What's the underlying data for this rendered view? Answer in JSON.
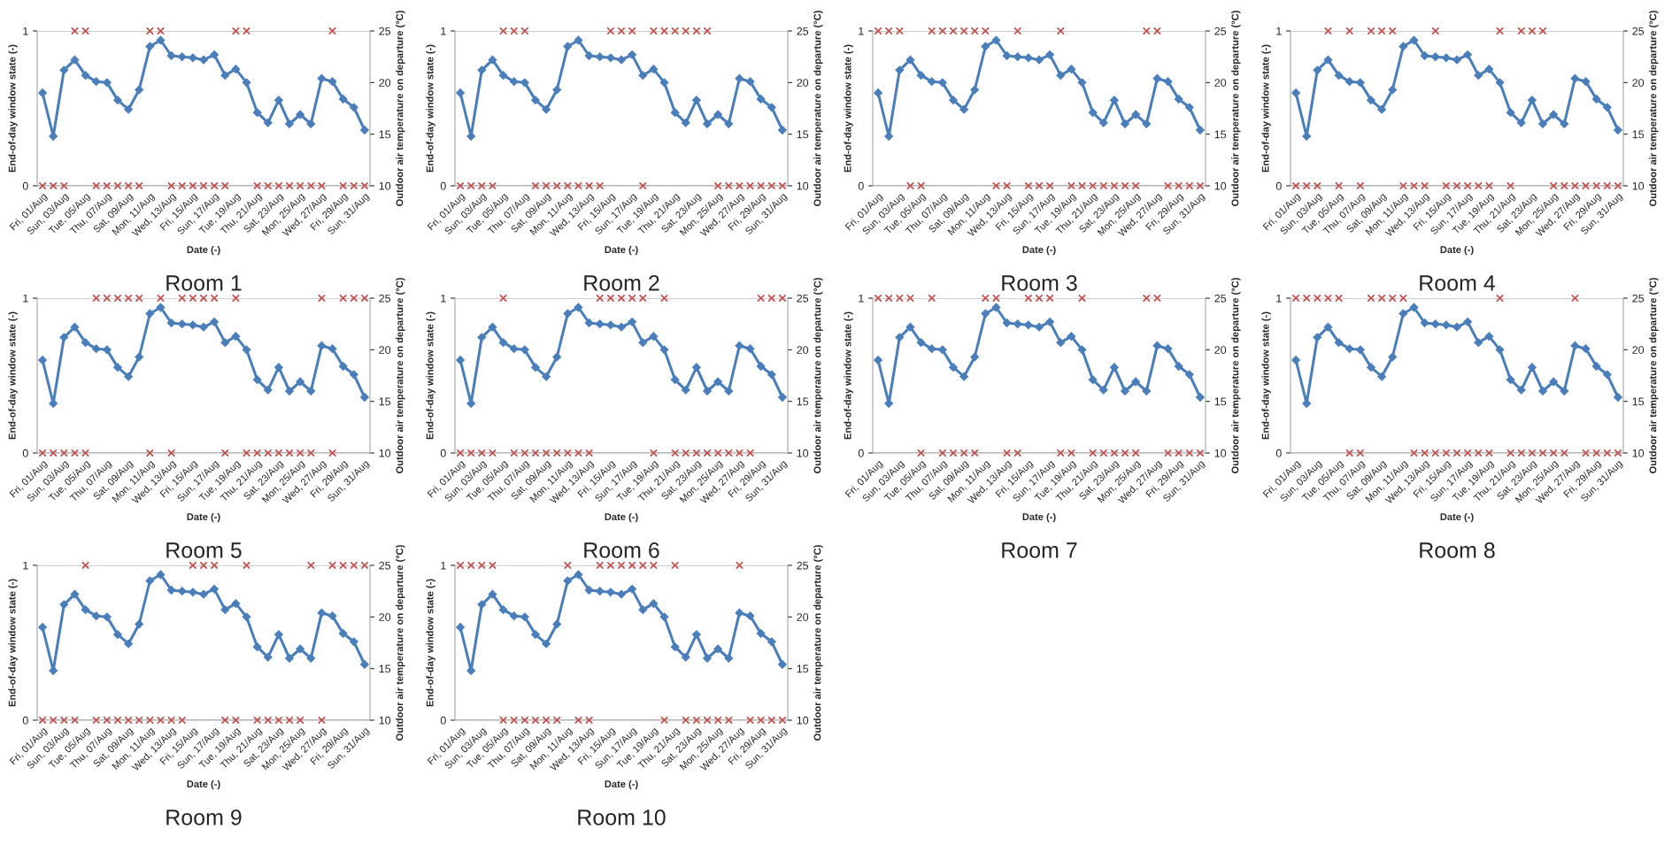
{
  "chart_data": [
    {
      "type": "line",
      "title": "Room 1",
      "xlabel": "Date (-)",
      "ylabel": "End-of-day window state (-)",
      "y2label": "Outdoor air temperature on departure (°C)",
      "categories": [
        "Fri, 01/Aug",
        null,
        "Sun, 03/Aug",
        null,
        "Tue, 05/Aug",
        null,
        "Thu, 07/Aug",
        null,
        "Sat, 09/Aug",
        null,
        "Mon, 11/Aug",
        null,
        "Wed, 13/Aug",
        null,
        "Fri, 15/Aug",
        null,
        "Sun, 17/Aug",
        null,
        "Tue, 19/Aug",
        null,
        "Thu, 21/Aug",
        null,
        "Sat, 23/Aug",
        null,
        "Mon, 25/Aug",
        null,
        "Wed, 27/Aug",
        null,
        "Fri, 29/Aug",
        null,
        "Sun, 31/Aug"
      ],
      "ylim": [
        0,
        1
      ],
      "yticks": [
        0,
        1
      ],
      "y2lim": [
        10,
        25
      ],
      "y2ticks": [
        10,
        15,
        20,
        25
      ],
      "grid": "y",
      "series": [
        {
          "type": "scatter",
          "color": "#c0504d",
          "marker": "cross",
          "values": [
            0,
            0,
            0,
            1,
            1,
            0,
            0,
            0,
            0,
            0,
            1,
            1,
            0,
            0,
            0,
            0,
            0,
            0,
            1,
            1,
            0,
            0,
            0,
            0,
            0,
            0,
            0,
            1,
            0,
            0,
            0
          ]
        },
        {
          "axis": "y2",
          "color": "#4a7ebb",
          "marker": "diamond",
          "values": [
            19.0,
            14.8,
            21.2,
            22.2,
            20.7,
            20.1,
            20.0,
            18.3,
            17.4,
            19.3,
            23.5,
            24.1,
            22.6,
            22.5,
            22.4,
            22.2,
            22.7,
            20.7,
            21.3,
            20.0,
            17.1,
            16.1,
            18.3,
            16.0,
            16.9,
            16.0,
            20.4,
            20.1,
            18.4,
            17.6,
            15.4
          ]
        }
      ]
    },
    {
      "type": "line",
      "title": "Room 2",
      "xlabel": "Date (-)",
      "ylabel": "End-of-day window state (-)",
      "y2label": "Outdoor air temperature on departure (°C)",
      "categories": [
        "Fri, 01/Aug",
        null,
        "Sun, 03/Aug",
        null,
        "Tue, 05/Aug",
        null,
        "Thu, 07/Aug",
        null,
        "Sat, 09/Aug",
        null,
        "Mon, 11/Aug",
        null,
        "Wed, 13/Aug",
        null,
        "Fri, 15/Aug",
        null,
        "Sun, 17/Aug",
        null,
        "Tue, 19/Aug",
        null,
        "Thu, 21/Aug",
        null,
        "Sat, 23/Aug",
        null,
        "Mon, 25/Aug",
        null,
        "Wed, 27/Aug",
        null,
        "Fri, 29/Aug",
        null,
        "Sun, 31/Aug"
      ],
      "ylim": [
        0,
        1
      ],
      "yticks": [
        0,
        1
      ],
      "y2lim": [
        10,
        25
      ],
      "y2ticks": [
        10,
        15,
        20,
        25
      ],
      "grid": "y",
      "series": [
        {
          "type": "scatter",
          "color": "#c0504d",
          "marker": "cross",
          "values": [
            0,
            0,
            0,
            0,
            1,
            1,
            1,
            0,
            0,
            0,
            0,
            0,
            0,
            0,
            1,
            1,
            1,
            0,
            1,
            1,
            1,
            1,
            1,
            1,
            0,
            0,
            0,
            0,
            0,
            0,
            0
          ]
        },
        {
          "axis": "y2",
          "color": "#4a7ebb",
          "marker": "diamond",
          "values": [
            19.0,
            14.8,
            21.2,
            22.2,
            20.7,
            20.1,
            20.0,
            18.3,
            17.4,
            19.3,
            23.5,
            24.1,
            22.6,
            22.5,
            22.4,
            22.2,
            22.7,
            20.7,
            21.3,
            20.0,
            17.1,
            16.1,
            18.3,
            16.0,
            16.9,
            16.0,
            20.4,
            20.1,
            18.4,
            17.6,
            15.4
          ]
        }
      ]
    },
    {
      "type": "line",
      "title": "Room 3",
      "xlabel": "Date (-)",
      "ylabel": "End-of-day window state (-)",
      "y2label": "Outdoor air temperature on departure (°C)",
      "categories": [
        "Fri, 01/Aug",
        null,
        "Sun, 03/Aug",
        null,
        "Tue, 05/Aug",
        null,
        "Thu, 07/Aug",
        null,
        "Sat, 09/Aug",
        null,
        "Mon, 11/Aug",
        null,
        "Wed, 13/Aug",
        null,
        "Fri, 15/Aug",
        null,
        "Sun, 17/Aug",
        null,
        "Tue, 19/Aug",
        null,
        "Thu, 21/Aug",
        null,
        "Sat, 23/Aug",
        null,
        "Mon, 25/Aug",
        null,
        "Wed, 27/Aug",
        null,
        "Fri, 29/Aug",
        null,
        "Sun, 31/Aug"
      ],
      "ylim": [
        0,
        1
      ],
      "yticks": [
        0,
        1
      ],
      "y2lim": [
        10,
        25
      ],
      "y2ticks": [
        10,
        15,
        20,
        25
      ],
      "grid": "y",
      "series": [
        {
          "type": "scatter",
          "color": "#c0504d",
          "marker": "cross",
          "values": [
            1,
            1,
            1,
            0,
            0,
            1,
            1,
            1,
            1,
            1,
            1,
            0,
            0,
            1,
            0,
            0,
            0,
            1,
            0,
            0,
            0,
            0,
            0,
            0,
            0,
            1,
            1,
            0,
            0,
            0,
            0
          ]
        },
        {
          "axis": "y2",
          "color": "#4a7ebb",
          "marker": "diamond",
          "values": [
            19.0,
            14.8,
            21.2,
            22.2,
            20.7,
            20.1,
            20.0,
            18.3,
            17.4,
            19.3,
            23.5,
            24.1,
            22.6,
            22.5,
            22.4,
            22.2,
            22.7,
            20.7,
            21.3,
            20.0,
            17.1,
            16.1,
            18.3,
            16.0,
            16.9,
            16.0,
            20.4,
            20.1,
            18.4,
            17.6,
            15.4
          ]
        }
      ]
    },
    {
      "type": "line",
      "title": "Room 4",
      "xlabel": "Date (-)",
      "ylabel": "End-of-day window state (-)",
      "y2label": "Outdoor air temperature on departure (°C)",
      "categories": [
        "Fri, 01/Aug",
        null,
        "Sun, 03/Aug",
        null,
        "Tue, 05/Aug",
        null,
        "Thu, 07/Aug",
        null,
        "Sat, 09/Aug",
        null,
        "Mon, 11/Aug",
        null,
        "Wed, 13/Aug",
        null,
        "Fri, 15/Aug",
        null,
        "Sun, 17/Aug",
        null,
        "Tue, 19/Aug",
        null,
        "Thu, 21/Aug",
        null,
        "Sat, 23/Aug",
        null,
        "Mon, 25/Aug",
        null,
        "Wed, 27/Aug",
        null,
        "Fri, 29/Aug",
        null,
        "Sun, 31/Aug"
      ],
      "ylim": [
        0,
        1
      ],
      "yticks": [
        0,
        1
      ],
      "y2lim": [
        10,
        25
      ],
      "y2ticks": [
        10,
        15,
        20,
        25
      ],
      "grid": "y",
      "series": [
        {
          "type": "scatter",
          "color": "#c0504d",
          "marker": "cross",
          "values": [
            0,
            0,
            0,
            1,
            0,
            1,
            0,
            1,
            1,
            1,
            0,
            0,
            0,
            1,
            0,
            0,
            0,
            0,
            0,
            1,
            0,
            1,
            1,
            1,
            0,
            0,
            0,
            0,
            0,
            0,
            0
          ]
        },
        {
          "axis": "y2",
          "color": "#4a7ebb",
          "marker": "diamond",
          "values": [
            19.0,
            14.8,
            21.2,
            22.2,
            20.7,
            20.1,
            20.0,
            18.3,
            17.4,
            19.3,
            23.5,
            24.1,
            22.6,
            22.5,
            22.4,
            22.2,
            22.7,
            20.7,
            21.3,
            20.0,
            17.1,
            16.1,
            18.3,
            16.0,
            16.9,
            16.0,
            20.4,
            20.1,
            18.4,
            17.6,
            15.4
          ]
        }
      ]
    },
    {
      "type": "line",
      "title": "Room 5",
      "xlabel": "Date (-)",
      "ylabel": "End-of-day window state (-)",
      "y2label": "Outdoor air temperature on departure (°C)",
      "categories": [
        "Fri, 01/Aug",
        null,
        "Sun, 03/Aug",
        null,
        "Tue, 05/Aug",
        null,
        "Thu, 07/Aug",
        null,
        "Sat, 09/Aug",
        null,
        "Mon, 11/Aug",
        null,
        "Wed, 13/Aug",
        null,
        "Fri, 15/Aug",
        null,
        "Sun, 17/Aug",
        null,
        "Tue, 19/Aug",
        null,
        "Thu, 21/Aug",
        null,
        "Sat, 23/Aug",
        null,
        "Mon, 25/Aug",
        null,
        "Wed, 27/Aug",
        null,
        "Fri, 29/Aug",
        null,
        "Sun, 31/Aug"
      ],
      "ylim": [
        0,
        1
      ],
      "yticks": [
        0,
        1
      ],
      "y2lim": [
        10,
        25
      ],
      "y2ticks": [
        10,
        15,
        20,
        25
      ],
      "grid": "y",
      "series": [
        {
          "type": "scatter",
          "color": "#c0504d",
          "marker": "cross",
          "values": [
            0,
            0,
            0,
            0,
            0,
            1,
            1,
            1,
            1,
            1,
            0,
            1,
            0,
            1,
            1,
            1,
            1,
            0,
            1,
            0,
            0,
            0,
            0,
            0,
            0,
            0,
            1,
            0,
            1,
            1,
            1
          ]
        },
        {
          "axis": "y2",
          "color": "#4a7ebb",
          "marker": "diamond",
          "values": [
            19.0,
            14.8,
            21.2,
            22.2,
            20.7,
            20.1,
            20.0,
            18.3,
            17.4,
            19.3,
            23.5,
            24.1,
            22.6,
            22.5,
            22.4,
            22.2,
            22.7,
            20.7,
            21.3,
            20.0,
            17.1,
            16.1,
            18.3,
            16.0,
            16.9,
            16.0,
            20.4,
            20.1,
            18.4,
            17.6,
            15.4
          ]
        }
      ]
    },
    {
      "type": "line",
      "title": "Room 6",
      "xlabel": "Date (-)",
      "ylabel": "End-of-day window state (-)",
      "y2label": "Outdoor air temperature on departure (°C)",
      "categories": [
        "Fri, 01/Aug",
        null,
        "Sun, 03/Aug",
        null,
        "Tue, 05/Aug",
        null,
        "Thu, 07/Aug",
        null,
        "Sat, 09/Aug",
        null,
        "Mon, 11/Aug",
        null,
        "Wed, 13/Aug",
        null,
        "Fri, 15/Aug",
        null,
        "Sun, 17/Aug",
        null,
        "Tue, 19/Aug",
        null,
        "Thu, 21/Aug",
        null,
        "Sat, 23/Aug",
        null,
        "Mon, 25/Aug",
        null,
        "Wed, 27/Aug",
        null,
        "Fri, 29/Aug",
        null,
        "Sun, 31/Aug"
      ],
      "ylim": [
        0,
        1
      ],
      "yticks": [
        0,
        1
      ],
      "y2lim": [
        10,
        25
      ],
      "y2ticks": [
        10,
        15,
        20,
        25
      ],
      "grid": "y",
      "series": [
        {
          "type": "scatter",
          "color": "#c0504d",
          "marker": "cross",
          "values": [
            0,
            0,
            0,
            0,
            1,
            0,
            0,
            0,
            0,
            0,
            0,
            0,
            0,
            1,
            1,
            1,
            1,
            1,
            0,
            1,
            0,
            0,
            0,
            0,
            0,
            0,
            0,
            0,
            1,
            1,
            1
          ]
        },
        {
          "axis": "y2",
          "color": "#4a7ebb",
          "marker": "diamond",
          "values": [
            19.0,
            14.8,
            21.2,
            22.2,
            20.7,
            20.1,
            20.0,
            18.3,
            17.4,
            19.3,
            23.5,
            24.1,
            22.6,
            22.5,
            22.4,
            22.2,
            22.7,
            20.7,
            21.3,
            20.0,
            17.1,
            16.1,
            18.3,
            16.0,
            16.9,
            16.0,
            20.4,
            20.1,
            18.4,
            17.6,
            15.4
          ]
        }
      ]
    },
    {
      "type": "line",
      "title": "Room 7",
      "xlabel": "Date (-)",
      "ylabel": "End-of-day window state (-)",
      "y2label": "Outdoor air temperature on departure (°C)",
      "categories": [
        "Fri, 01/Aug",
        null,
        "Sun, 03/Aug",
        null,
        "Tue, 05/Aug",
        null,
        "Thu, 07/Aug",
        null,
        "Sat, 09/Aug",
        null,
        "Mon, 11/Aug",
        null,
        "Wed, 13/Aug",
        null,
        "Fri, 15/Aug",
        null,
        "Sun, 17/Aug",
        null,
        "Tue, 19/Aug",
        null,
        "Thu, 21/Aug",
        null,
        "Sat, 23/Aug",
        null,
        "Mon, 25/Aug",
        null,
        "Wed, 27/Aug",
        null,
        "Fri, 29/Aug",
        null,
        "Sun, 31/Aug"
      ],
      "ylim": [
        0,
        1
      ],
      "yticks": [
        0,
        1
      ],
      "y2lim": [
        10,
        25
      ],
      "y2ticks": [
        10,
        15,
        20,
        25
      ],
      "grid": "y",
      "series": [
        {
          "type": "scatter",
          "color": "#c0504d",
          "marker": "cross",
          "values": [
            1,
            1,
            1,
            1,
            0,
            1,
            0,
            0,
            0,
            0,
            1,
            1,
            0,
            0,
            1,
            1,
            1,
            0,
            0,
            1,
            0,
            0,
            0,
            0,
            0,
            1,
            1,
            0,
            0,
            0,
            0
          ]
        },
        {
          "axis": "y2",
          "color": "#4a7ebb",
          "marker": "diamond",
          "values": [
            19.0,
            14.8,
            21.2,
            22.2,
            20.7,
            20.1,
            20.0,
            18.3,
            17.4,
            19.3,
            23.5,
            24.1,
            22.6,
            22.5,
            22.4,
            22.2,
            22.7,
            20.7,
            21.3,
            20.0,
            17.1,
            16.1,
            18.3,
            16.0,
            16.9,
            16.0,
            20.4,
            20.1,
            18.4,
            17.6,
            15.4
          ]
        }
      ]
    },
    {
      "type": "line",
      "title": "Room 8",
      "xlabel": "Date (-)",
      "ylabel": "End-of-day window state (-)",
      "y2label": "Outdoor air temperature on departure (°C)",
      "categories": [
        "Fri, 01/Aug",
        null,
        "Sun, 03/Aug",
        null,
        "Tue, 05/Aug",
        null,
        "Thu, 07/Aug",
        null,
        "Sat, 09/Aug",
        null,
        "Mon, 11/Aug",
        null,
        "Wed, 13/Aug",
        null,
        "Fri, 15/Aug",
        null,
        "Sun, 17/Aug",
        null,
        "Tue, 19/Aug",
        null,
        "Thu, 21/Aug",
        null,
        "Sat, 23/Aug",
        null,
        "Mon, 25/Aug",
        null,
        "Wed, 27/Aug",
        null,
        "Fri, 29/Aug",
        null,
        "Sun, 31/Aug"
      ],
      "ylim": [
        0,
        1
      ],
      "yticks": [
        0,
        1
      ],
      "y2lim": [
        10,
        25
      ],
      "y2ticks": [
        10,
        15,
        20,
        25
      ],
      "grid": "y",
      "series": [
        {
          "type": "scatter",
          "color": "#c0504d",
          "marker": "cross",
          "values": [
            1,
            1,
            1,
            1,
            1,
            0,
            0,
            1,
            1,
            1,
            1,
            0,
            0,
            0,
            0,
            0,
            0,
            0,
            0,
            1,
            0,
            0,
            0,
            0,
            0,
            0,
            1,
            0,
            0,
            0,
            0
          ]
        },
        {
          "axis": "y2",
          "color": "#4a7ebb",
          "marker": "diamond",
          "values": [
            19.0,
            14.8,
            21.2,
            22.2,
            20.7,
            20.1,
            20.0,
            18.3,
            17.4,
            19.3,
            23.5,
            24.1,
            22.6,
            22.5,
            22.4,
            22.2,
            22.7,
            20.7,
            21.3,
            20.0,
            17.1,
            16.1,
            18.3,
            16.0,
            16.9,
            16.0,
            20.4,
            20.1,
            18.4,
            17.6,
            15.4
          ]
        }
      ]
    },
    {
      "type": "line",
      "title": "Room 9",
      "xlabel": "Date (-)",
      "ylabel": "End-of-day window state (-)",
      "y2label": "Outdoor air temperature on departure (°C)",
      "categories": [
        "Fri, 01/Aug",
        null,
        "Sun, 03/Aug",
        null,
        "Tue, 05/Aug",
        null,
        "Thu, 07/Aug",
        null,
        "Sat, 09/Aug",
        null,
        "Mon, 11/Aug",
        null,
        "Wed, 13/Aug",
        null,
        "Fri, 15/Aug",
        null,
        "Sun, 17/Aug",
        null,
        "Tue, 19/Aug",
        null,
        "Thu, 21/Aug",
        null,
        "Sat, 23/Aug",
        null,
        "Mon, 25/Aug",
        null,
        "Wed, 27/Aug",
        null,
        "Fri, 29/Aug",
        null,
        "Sun, 31/Aug"
      ],
      "ylim": [
        0,
        1
      ],
      "yticks": [
        0,
        1
      ],
      "y2lim": [
        10,
        25
      ],
      "y2ticks": [
        10,
        15,
        20,
        25
      ],
      "grid": "y",
      "series": [
        {
          "type": "scatter",
          "color": "#c0504d",
          "marker": "cross",
          "values": [
            0,
            0,
            0,
            0,
            1,
            0,
            0,
            0,
            0,
            0,
            0,
            0,
            0,
            0,
            1,
            1,
            1,
            0,
            0,
            1,
            0,
            0,
            0,
            0,
            0,
            1,
            0,
            1,
            1,
            1,
            1
          ]
        },
        {
          "axis": "y2",
          "color": "#4a7ebb",
          "marker": "diamond",
          "values": [
            19.0,
            14.8,
            21.2,
            22.2,
            20.7,
            20.1,
            20.0,
            18.3,
            17.4,
            19.3,
            23.5,
            24.1,
            22.6,
            22.5,
            22.4,
            22.2,
            22.7,
            20.7,
            21.3,
            20.0,
            17.1,
            16.1,
            18.3,
            16.0,
            16.9,
            16.0,
            20.4,
            20.1,
            18.4,
            17.6,
            15.4
          ]
        }
      ]
    },
    {
      "type": "line",
      "title": "Room 10",
      "xlabel": "Date (-)",
      "ylabel": "End-of-day window state (-)",
      "y2label": "Outdoor air temperature on departure (°C)",
      "categories": [
        "Fri, 01/Aug",
        null,
        "Sun, 03/Aug",
        null,
        "Tue, 05/Aug",
        null,
        "Thu, 07/Aug",
        null,
        "Sat, 09/Aug",
        null,
        "Mon, 11/Aug",
        null,
        "Wed, 13/Aug",
        null,
        "Fri, 15/Aug",
        null,
        "Sun, 17/Aug",
        null,
        "Tue, 19/Aug",
        null,
        "Thu, 21/Aug",
        null,
        "Sat, 23/Aug",
        null,
        "Mon, 25/Aug",
        null,
        "Wed, 27/Aug",
        null,
        "Fri, 29/Aug",
        null,
        "Sun, 31/Aug"
      ],
      "ylim": [
        0,
        1
      ],
      "yticks": [
        0,
        1
      ],
      "y2lim": [
        10,
        25
      ],
      "y2ticks": [
        10,
        15,
        20,
        25
      ],
      "grid": "y",
      "series": [
        {
          "type": "scatter",
          "color": "#c0504d",
          "marker": "cross",
          "values": [
            1,
            1,
            1,
            1,
            0,
            0,
            0,
            0,
            0,
            0,
            1,
            0,
            0,
            1,
            1,
            1,
            1,
            1,
            1,
            0,
            1,
            0,
            0,
            0,
            0,
            0,
            1,
            0,
            0,
            0,
            0
          ]
        },
        {
          "axis": "y2",
          "color": "#4a7ebb",
          "marker": "diamond",
          "values": [
            19.0,
            14.8,
            21.2,
            22.2,
            20.7,
            20.1,
            20.0,
            18.3,
            17.4,
            19.3,
            23.5,
            24.1,
            22.6,
            22.5,
            22.4,
            22.2,
            22.7,
            20.7,
            21.3,
            20.0,
            17.1,
            16.1,
            18.3,
            16.0,
            16.9,
            16.0,
            20.4,
            20.1,
            18.4,
            17.6,
            15.4
          ]
        }
      ]
    }
  ]
}
